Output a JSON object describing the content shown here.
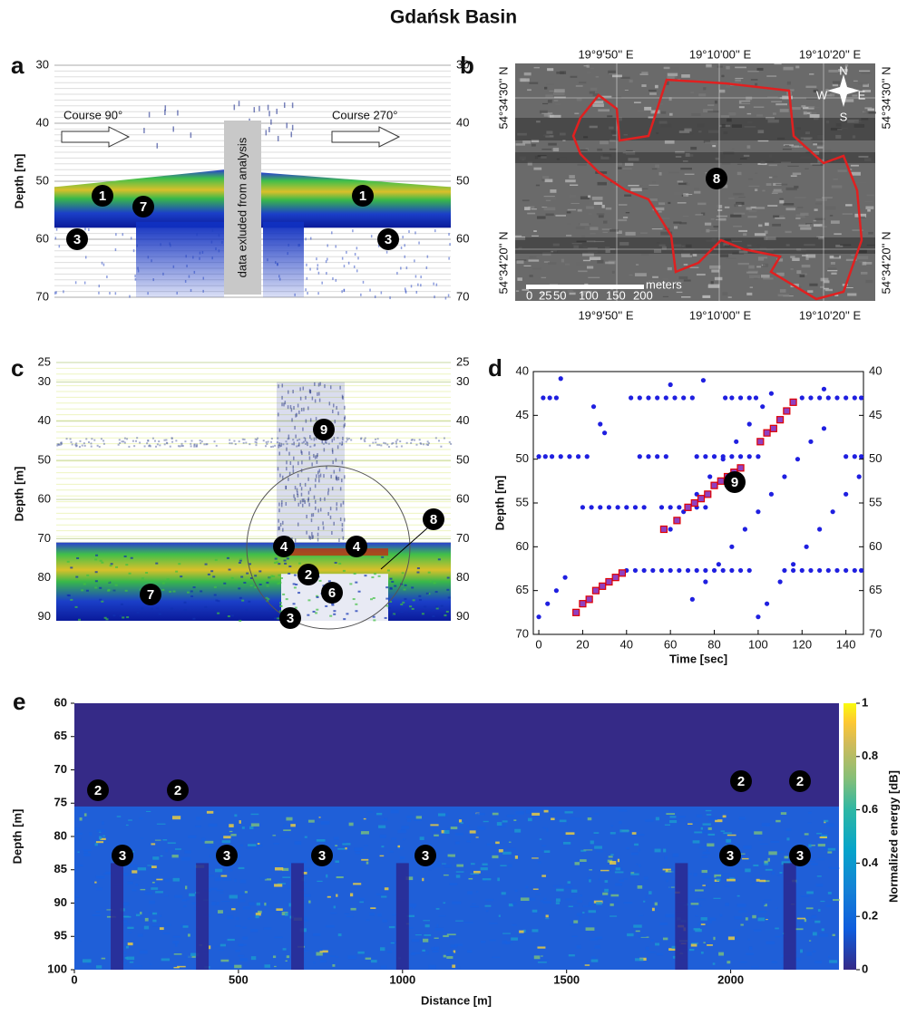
{
  "title": "Gdańsk Basin",
  "chart_data": [
    {
      "type": "echogram",
      "panel": "a",
      "ylabel": "Depth [m]",
      "ylim": [
        30,
        70
      ],
      "yticks": [
        30,
        40,
        50,
        60,
        70
      ],
      "course_left": "Course 90°",
      "course_right": "Course 270°",
      "excluded_label": "data exluded from analysis",
      "annotations": [
        "1",
        "7",
        "3",
        "1",
        "3"
      ]
    },
    {
      "type": "map",
      "panel": "b",
      "top_labels": [
        "19°9'50'' E",
        "19°10'00'' E",
        "19°10'20'' E"
      ],
      "bottom_labels": [
        "19°9'50'' E",
        "19°10'00'' E",
        "19°10'20'' E"
      ],
      "left_labels": [
        "54°34'30'' N",
        "54°34'20'' N"
      ],
      "right_labels": [
        "54°34'30'' N",
        "54°34'20'' N"
      ],
      "scale_ticks": [
        "0",
        "25",
        "50",
        "100",
        "150",
        "200"
      ],
      "scale_unit": "meters",
      "compass": [
        "N",
        "E",
        "S",
        "W"
      ],
      "annotations": [
        "8"
      ]
    },
    {
      "type": "echogram",
      "panel": "c",
      "ylabel": "Depth [m]",
      "ylim": [
        25,
        91
      ],
      "yticks": [
        25,
        30,
        40,
        50,
        60,
        70,
        80,
        90
      ],
      "annotations": [
        "9",
        "4",
        "4",
        "2",
        "8",
        "6",
        "7",
        "3"
      ]
    },
    {
      "type": "scatter",
      "panel": "d",
      "xlabel": "Time [sec]",
      "ylabel": "Depth [m]",
      "xlim": [
        -2.5,
        148
      ],
      "ylim": [
        40,
        70
      ],
      "y_inverted": true,
      "xticks": [
        0,
        20,
        40,
        60,
        80,
        100,
        120,
        140
      ],
      "yticks": [
        40,
        45,
        50,
        55,
        60,
        65,
        70
      ],
      "annotations": [
        "9"
      ],
      "series": [
        {
          "color": "#1f1fe0",
          "marker": "circle",
          "x": [
            2,
            5,
            8,
            42,
            46,
            50,
            54,
            58,
            62,
            66,
            70,
            85,
            88,
            92,
            96,
            99,
            120,
            124,
            128,
            132,
            136,
            140,
            144,
            147,
            0,
            3,
            6,
            10,
            14,
            18,
            22,
            46,
            50,
            54,
            58,
            72,
            76,
            80,
            84,
            88,
            92,
            96,
            100,
            140,
            144,
            147,
            20,
            24,
            28,
            32,
            36,
            40,
            44,
            48,
            56,
            60,
            64,
            68,
            72,
            76,
            40,
            44,
            48,
            52,
            56,
            60,
            64,
            68,
            72,
            76,
            80,
            84,
            88,
            92,
            96,
            112,
            116,
            120,
            124,
            128,
            132,
            136,
            140,
            144,
            147,
            0,
            4,
            8,
            12,
            100,
            104,
            110,
            116,
            122,
            128,
            134,
            140,
            146,
            70,
            76,
            82,
            88,
            94,
            100,
            106,
            112,
            118,
            124,
            130,
            60,
            66,
            72,
            78,
            84,
            90,
            96,
            102,
            106,
            10,
            25,
            28,
            30,
            75,
            130,
            60
          ],
          "values": [
            43,
            43,
            43,
            43,
            43,
            43,
            43,
            43,
            43,
            43,
            43,
            43,
            43,
            43,
            43,
            43,
            43,
            43,
            43,
            43,
            43,
            43,
            43,
            43,
            49.7,
            49.7,
            49.7,
            49.7,
            49.7,
            49.7,
            49.7,
            49.7,
            49.7,
            49.7,
            49.7,
            49.7,
            49.7,
            49.7,
            49.7,
            49.7,
            49.7,
            49.7,
            49.7,
            49.7,
            49.7,
            49.7,
            55.5,
            55.5,
            55.5,
            55.5,
            55.5,
            55.5,
            55.5,
            55.5,
            55.5,
            55.5,
            55.5,
            55.5,
            55.5,
            55.5,
            62.7,
            62.7,
            62.7,
            62.7,
            62.7,
            62.7,
            62.7,
            62.7,
            62.7,
            62.7,
            62.7,
            62.7,
            62.7,
            62.7,
            62.7,
            62.7,
            62.7,
            62.7,
            62.7,
            62.7,
            62.7,
            62.7,
            62.7,
            62.7,
            62.7,
            68,
            66.5,
            65,
            63.5,
            68,
            66.5,
            64,
            62,
            60,
            58,
            56,
            54,
            52,
            66,
            64,
            62,
            60,
            58,
            56,
            54,
            52,
            50,
            48,
            46.5,
            58,
            56,
            54,
            52,
            50,
            48,
            46,
            44,
            42.5,
            40.8,
            44,
            46,
            47,
            41,
            42,
            41.5
          ]
        },
        {
          "color": "#e00000",
          "marker": "square",
          "x": [
            17,
            20,
            23,
            26,
            29,
            32,
            35,
            38,
            57,
            63,
            68,
            71,
            74,
            77,
            80,
            83,
            86,
            89,
            92,
            101,
            104,
            107,
            110,
            113,
            116
          ],
          "values": [
            67.5,
            66.5,
            66,
            65,
            64.5,
            64,
            63.5,
            63,
            58,
            57,
            55.5,
            55,
            54.5,
            54,
            53,
            52.5,
            52,
            51.5,
            51,
            48,
            47,
            46.5,
            45.5,
            44.5,
            43.5
          ]
        }
      ]
    },
    {
      "type": "heatmap",
      "panel": "e",
      "xlabel": "Distance [m]",
      "ylabel": "Depth [m]",
      "xlim": [
        0,
        2330
      ],
      "ylim": [
        60,
        100
      ],
      "y_inverted": true,
      "xticks": [
        0,
        500,
        1000,
        1500,
        2000
      ],
      "yticks": [
        60,
        65,
        70,
        75,
        80,
        85,
        90,
        95,
        100
      ],
      "colorbar": {
        "label": "Normalized energy [dB]",
        "lim": [
          0,
          1
        ],
        "ticks": [
          0,
          0.2,
          0.4,
          0.6,
          0.8,
          1
        ]
      },
      "annotations": [
        "2",
        "2",
        "2",
        "2",
        "3",
        "3",
        "3",
        "3",
        "3",
        "3"
      ]
    }
  ]
}
